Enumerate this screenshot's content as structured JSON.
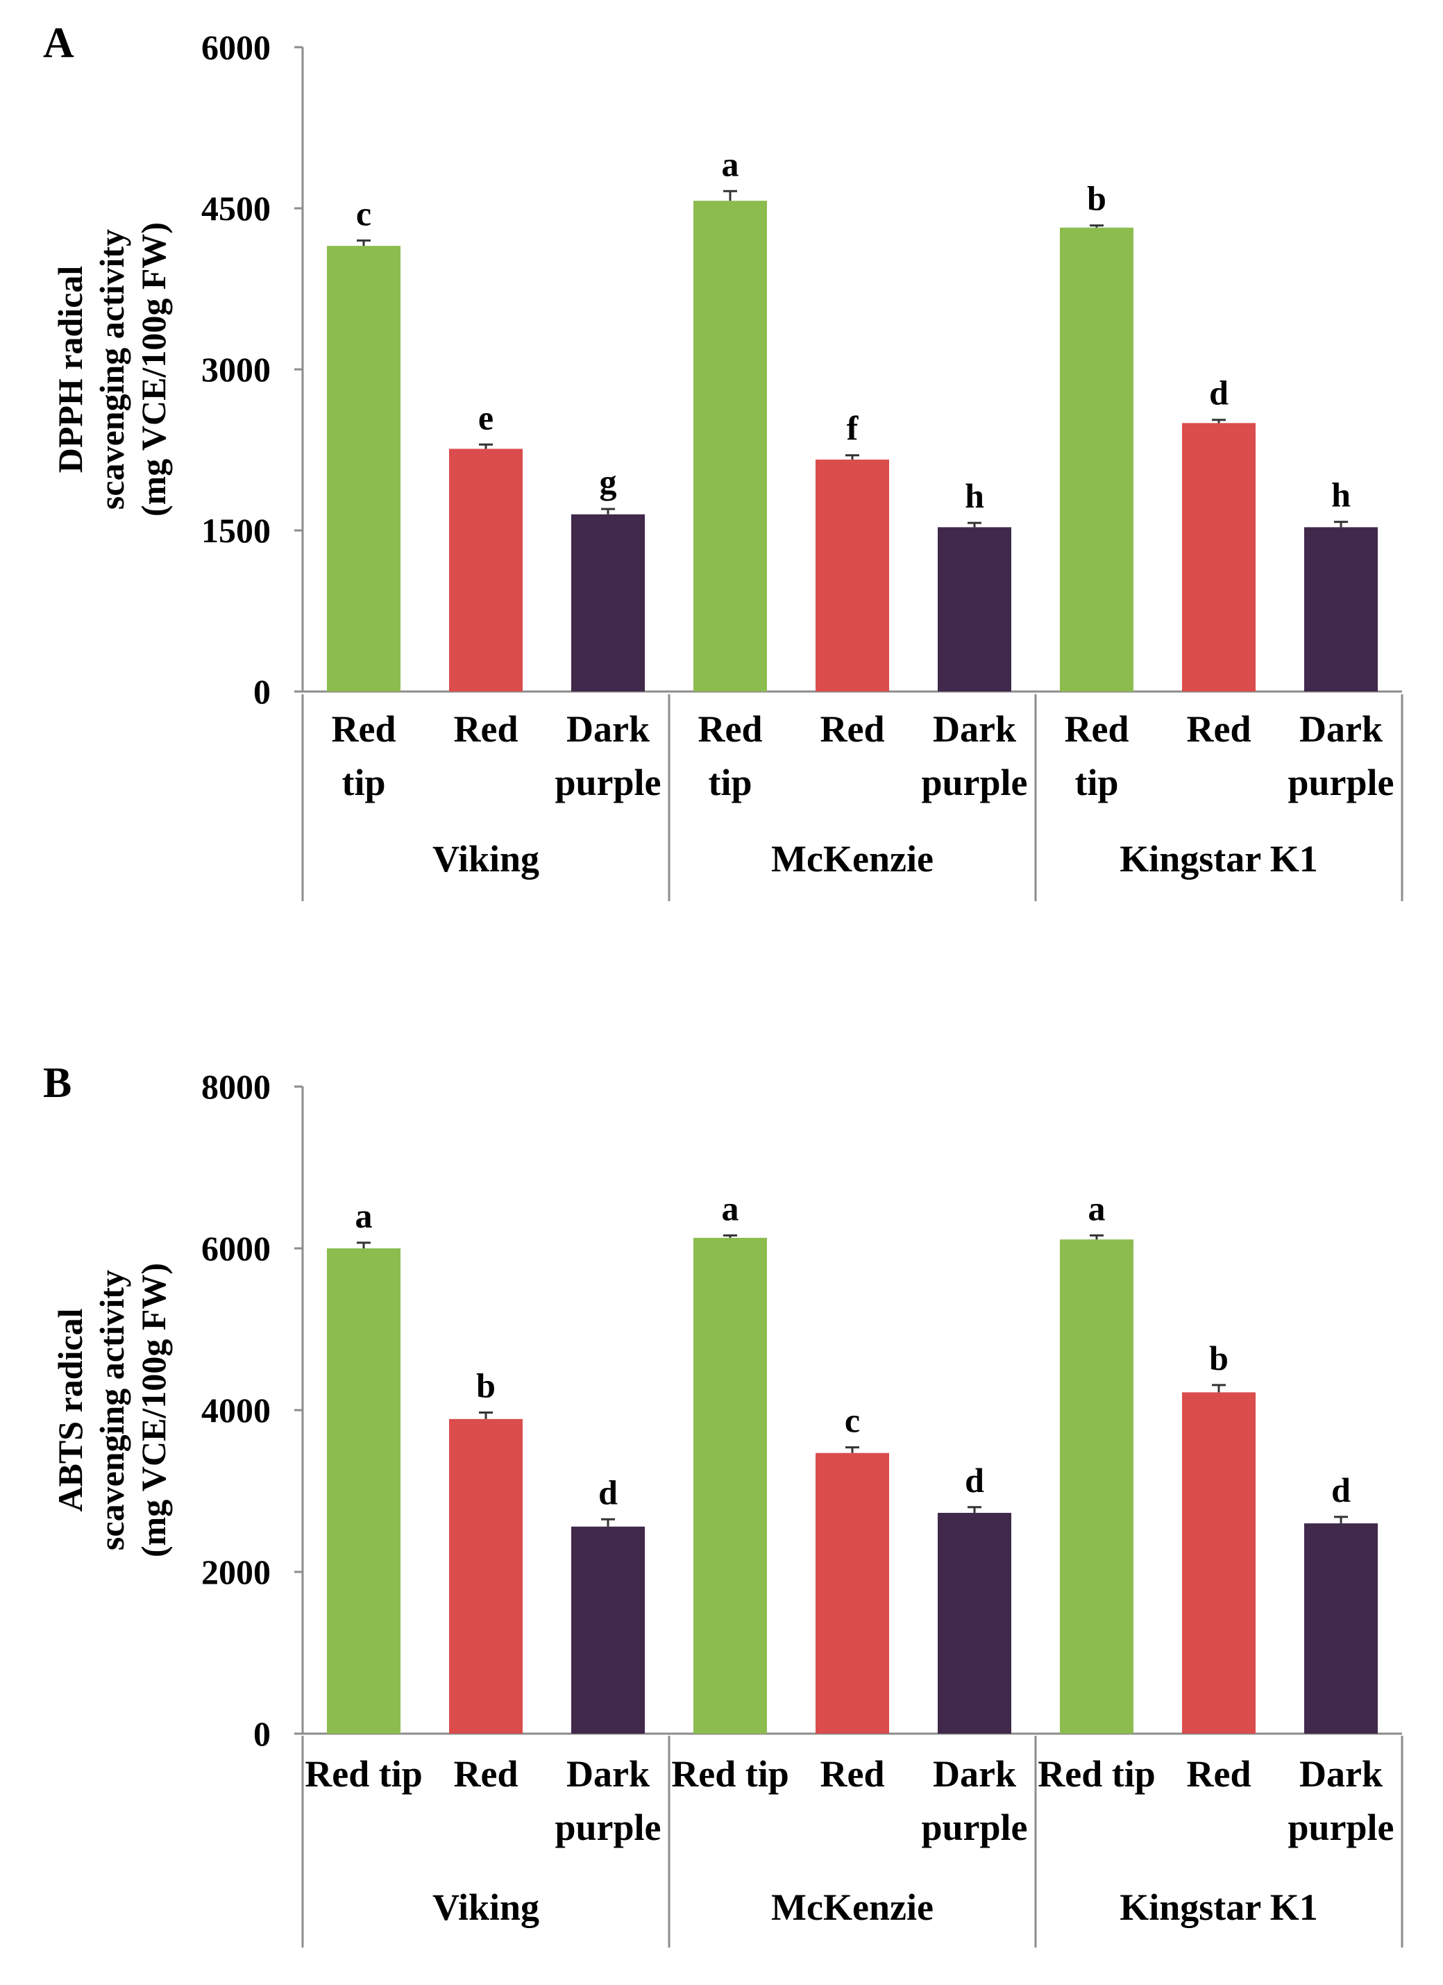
{
  "colors": {
    "Red tip": "#8cbc4e",
    "Red": "#db4c4c",
    "Dark purple": "#40294b"
  },
  "chart_data": [
    {
      "type": "bar",
      "panel": "A",
      "ylabel": [
        "DPPH radical",
        "scavenging activity",
        "(mg VCE/100g FW)"
      ],
      "ylim": [
        0,
        6000
      ],
      "yticks": [
        "0",
        "1500",
        "3000",
        "4500",
        "6000"
      ],
      "groups": [
        "Viking",
        "McKenzie",
        "Kingstar K1"
      ],
      "category_labels": [
        [
          "Red",
          "tip"
        ],
        [
          "Red"
        ],
        [
          "Dark",
          "purple"
        ]
      ],
      "series": [
        {
          "name": "Red tip",
          "values": [
            4150,
            4570,
            4320
          ],
          "errors": [
            50,
            90,
            20
          ],
          "letters": [
            "c",
            "a",
            "b"
          ]
        },
        {
          "name": "Red",
          "values": [
            2260,
            2160,
            2500
          ],
          "errors": [
            40,
            40,
            30
          ],
          "letters": [
            "e",
            "f",
            "d"
          ]
        },
        {
          "name": "Dark purple",
          "values": [
            1650,
            1530,
            1530
          ],
          "errors": [
            50,
            40,
            50
          ],
          "letters": [
            "g",
            "h",
            "h"
          ]
        }
      ]
    },
    {
      "type": "bar",
      "panel": "B",
      "ylabel": [
        "ABTS radical",
        "scavenging activity",
        "(mg VCE/100g FW)"
      ],
      "ylim": [
        0,
        8000
      ],
      "yticks": [
        "0",
        "2000",
        "4000",
        "6000",
        "8000"
      ],
      "groups": [
        "Viking",
        "McKenzie",
        "Kingstar K1"
      ],
      "category_labels": [
        [
          "Red tip"
        ],
        [
          "Red"
        ],
        [
          "Dark",
          "purple"
        ]
      ],
      "series": [
        {
          "name": "Red tip",
          "values": [
            6000,
            6130,
            6110
          ],
          "errors": [
            70,
            30,
            50
          ],
          "letters": [
            "a",
            "a",
            "a"
          ]
        },
        {
          "name": "Red",
          "values": [
            3890,
            3470,
            4220
          ],
          "errors": [
            80,
            70,
            90
          ],
          "letters": [
            "b",
            "c",
            "b"
          ]
        },
        {
          "name": "Dark purple",
          "values": [
            2560,
            2730,
            2600
          ],
          "errors": [
            90,
            70,
            80
          ],
          "letters": [
            "d",
            "d",
            "d"
          ]
        }
      ]
    }
  ]
}
